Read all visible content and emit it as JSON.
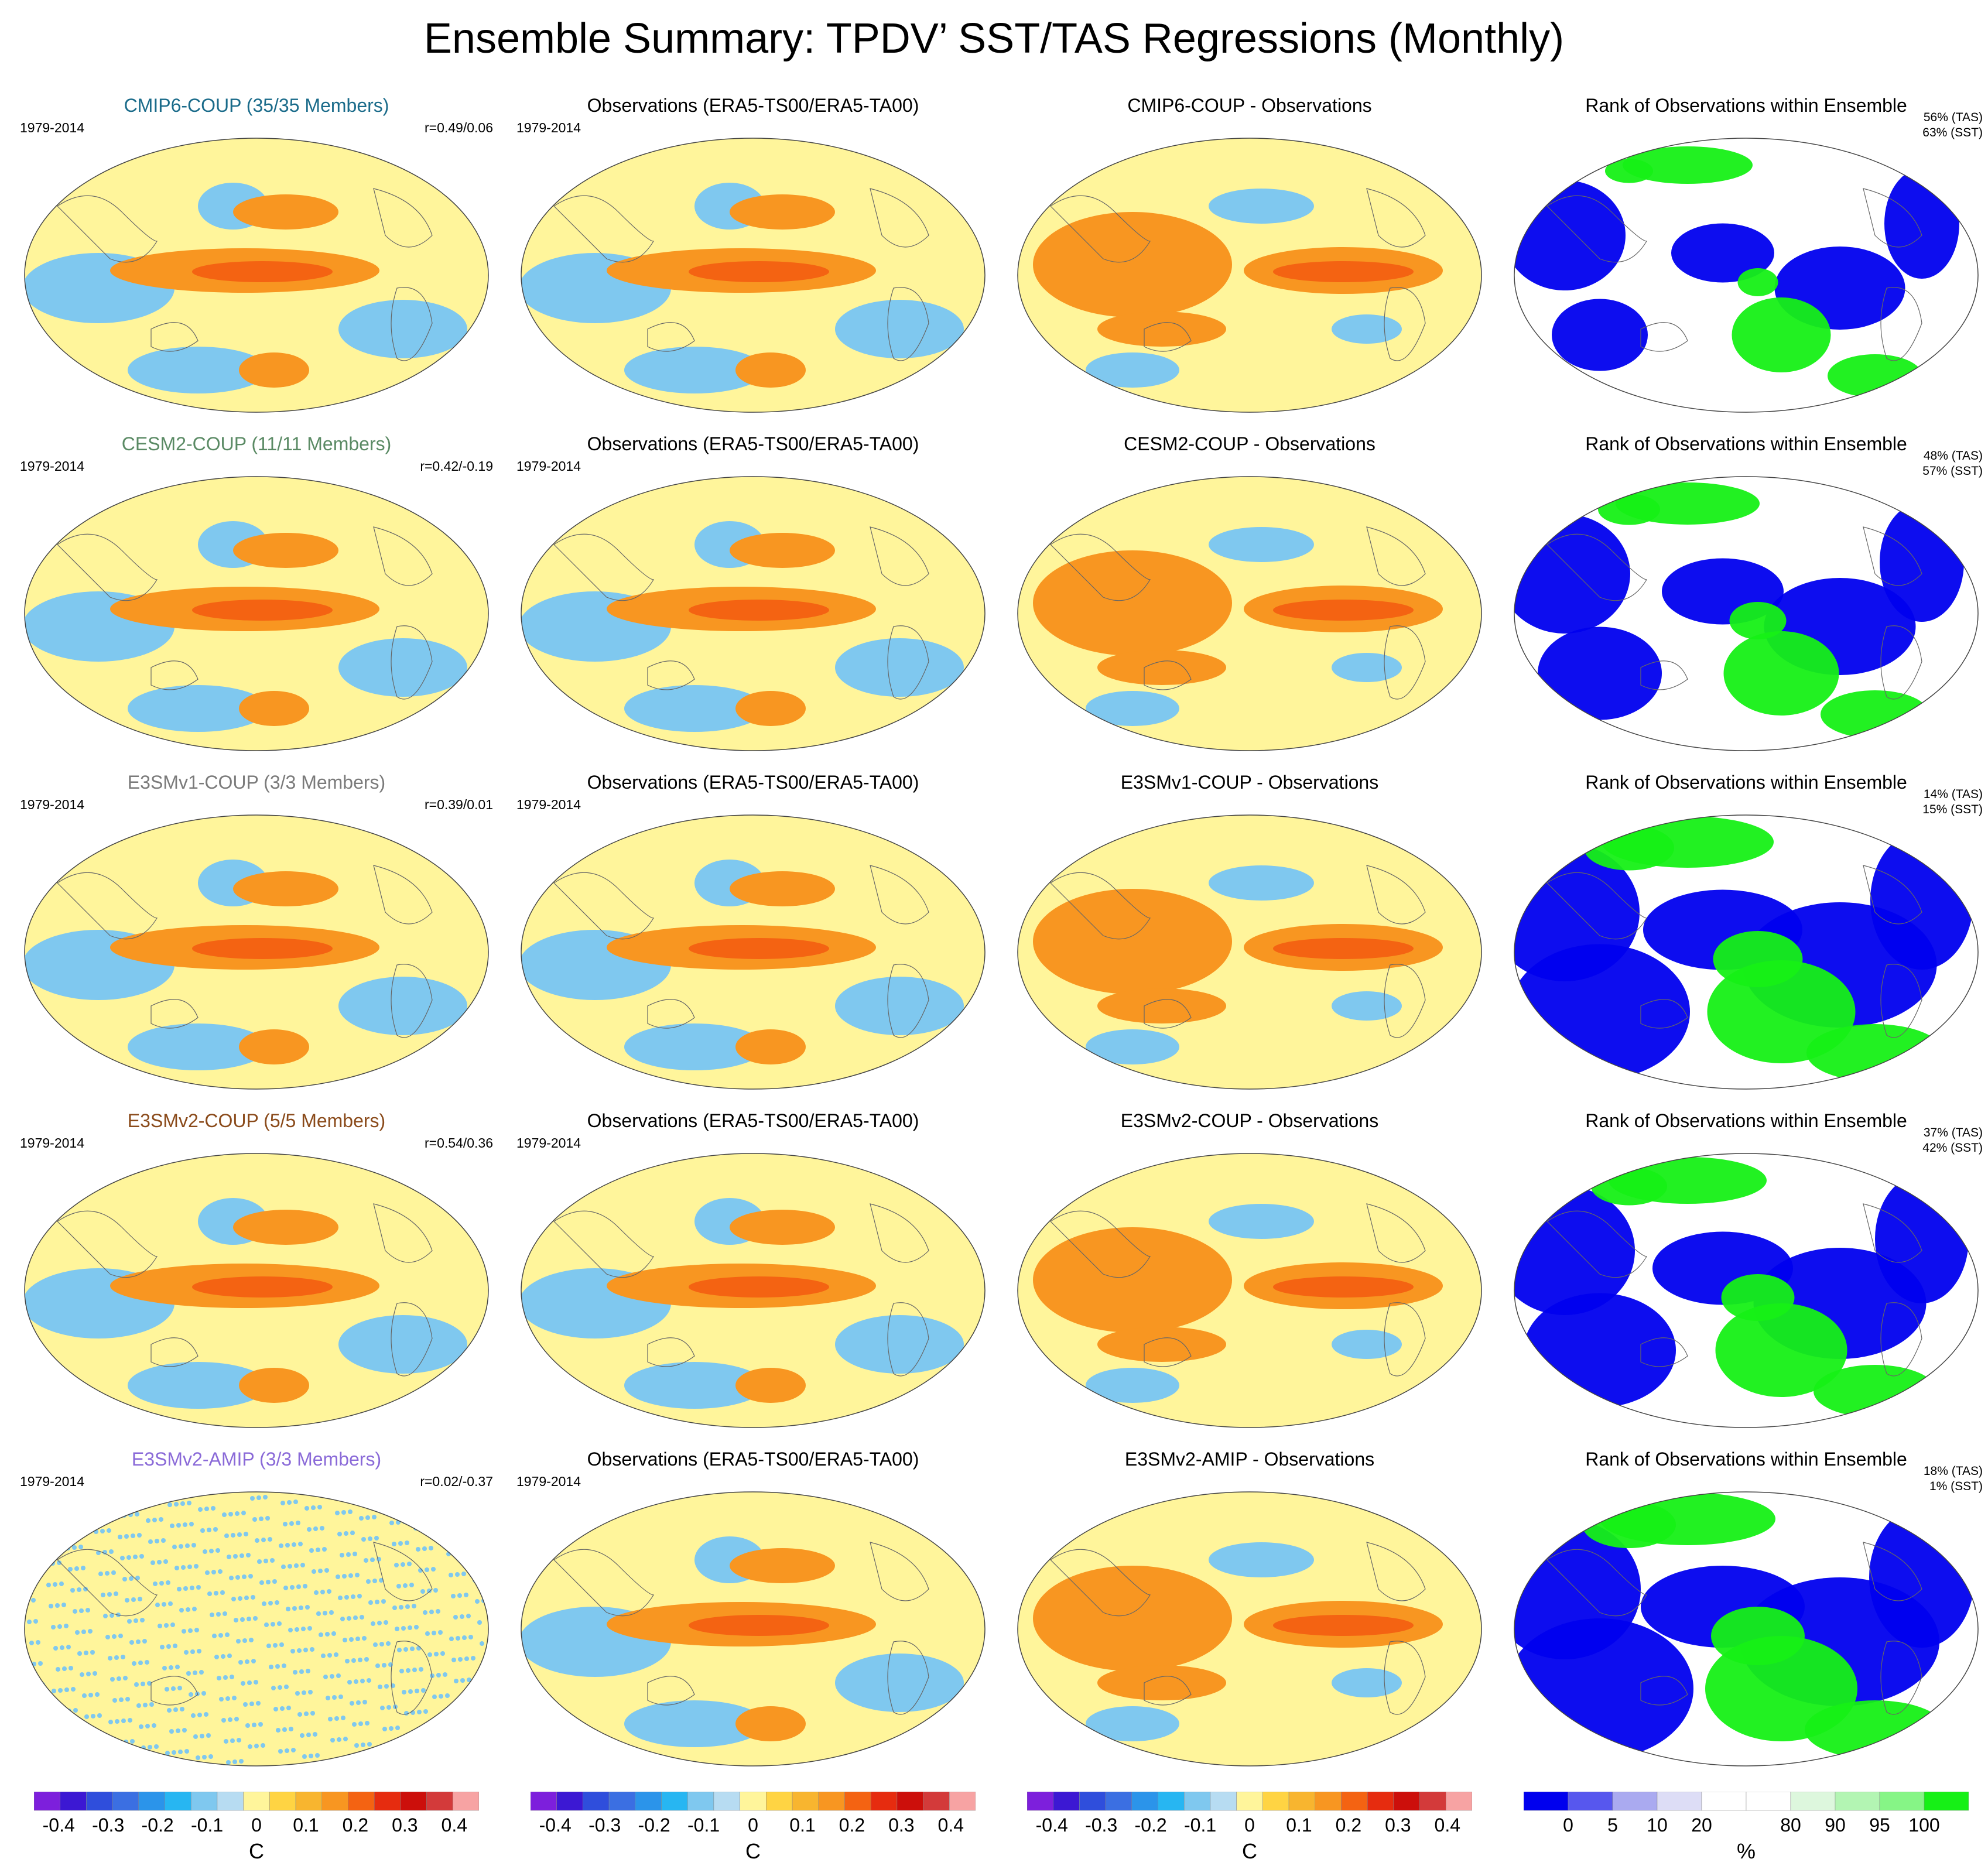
{
  "title": "Ensemble Summary: TPDV’ SST/TAS Regressions (Monthly)",
  "colors": {
    "diverging_scale": [
      "#7d1fdc",
      "#3c18d3",
      "#2f4edc",
      "#3b6fe2",
      "#2b94ea",
      "#27b6f2",
      "#7fc8ef",
      "#b7dcf2",
      "#fff59b",
      "#ffd443",
      "#f8b52f",
      "#f89621",
      "#f46312",
      "#e62c0f",
      "#cc0f0b",
      "#d33a3a",
      "#f7a3a3"
    ],
    "rank_scale": [
      "#0000ee",
      "#5757ee",
      "#aaaaf0",
      "#ddddf6",
      "#ffffff",
      "#ffffff",
      "#ddf7dd",
      "#b3f5b3",
      "#86f586",
      "#16f016"
    ],
    "land": "#fff59b",
    "cold": "#7fc8ef",
    "warm": "#f89621",
    "hot": "#f46312",
    "rank_blue": "#0000ee",
    "rank_green": "#16f016"
  },
  "rows": [
    {
      "model_title": "CMIP6-COUP (35/35 Members)",
      "model_color": "#1a6b8a",
      "period": "1979-2014",
      "correlation": "r=0.49/0.06",
      "obs_title": "Observations (ERA5-TS00/ERA5-TA00)",
      "obs_period": "1979-2014",
      "diff_title": "CMIP6-COUP - Observations",
      "rank_title": "Rank of Observations within Ensemble",
      "rank_tas": "56% (TAS)",
      "rank_sst": "63% (SST)",
      "rank_fill": 0.35
    },
    {
      "model_title": "CESM2-COUP (11/11 Members)",
      "model_color": "#5a8a64",
      "period": "1979-2014",
      "correlation": "r=0.42/-0.19",
      "obs_title": "Observations (ERA5-TS00/ERA5-TA00)",
      "obs_period": "1979-2014",
      "diff_title": "CESM2-COUP - Observations",
      "rank_title": "Rank of Observations within Ensemble",
      "rank_tas": "48% (TAS)",
      "rank_sst": "57% (SST)",
      "rank_fill": 0.55
    },
    {
      "model_title": "E3SMv1-COUP (3/3 Members)",
      "model_color": "#7a7a7a",
      "period": "1979-2014",
      "correlation": "r=0.39/0.01",
      "obs_title": "Observations (ERA5-TS00/ERA5-TA00)",
      "obs_period": "1979-2014",
      "diff_title": "E3SMv1-COUP - Observations",
      "rank_title": "Rank of Observations within Ensemble",
      "rank_tas": "14% (TAS)",
      "rank_sst": "15% (SST)",
      "rank_fill": 0.95
    },
    {
      "model_title": "E3SMv2-COUP (5/5 Members)",
      "model_color": "#8a4a1a",
      "period": "1979-2014",
      "correlation": "r=0.54/0.36",
      "obs_title": "Observations (ERA5-TS00/ERA5-TA00)",
      "obs_period": "1979-2014",
      "diff_title": "E3SMv2-COUP - Observations",
      "rank_title": "Rank of Observations within Ensemble",
      "rank_tas": "37% (TAS)",
      "rank_sst": "42% (SST)",
      "rank_fill": 0.75
    },
    {
      "model_title": "E3SMv2-AMIP (3/3 Members)",
      "model_color": "#8a6ad8",
      "period": "1979-2014",
      "correlation": "r=0.02/-0.37",
      "obs_title": "Observations (ERA5-TS00/ERA5-TA00)",
      "obs_period": "1979-2014",
      "diff_title": "E3SMv2-AMIP - Observations",
      "rank_title": "Rank of Observations within Ensemble",
      "rank_tas": "18% (TAS)",
      "rank_sst": "1% (SST)",
      "rank_fill": 1.0
    }
  ],
  "colorbars": [
    {
      "labels": [
        "-0.4",
        "-0.3",
        "-0.2",
        "-0.1",
        "0",
        "0.1",
        "0.2",
        "0.3",
        "0.4"
      ],
      "unit": "C"
    },
    {
      "labels": [
        "-0.4",
        "-0.3",
        "-0.2",
        "-0.1",
        "0",
        "0.1",
        "0.2",
        "0.3",
        "0.4"
      ],
      "unit": "C"
    },
    {
      "labels": [
        "-0.4",
        "-0.3",
        "-0.2",
        "-0.1",
        "0",
        "0.1",
        "0.2",
        "0.3",
        "0.4"
      ],
      "unit": "C"
    },
    {
      "labels": [
        "0",
        "5",
        "10",
        "20",
        "80",
        "90",
        "95",
        "100"
      ],
      "unit": "%"
    }
  ]
}
